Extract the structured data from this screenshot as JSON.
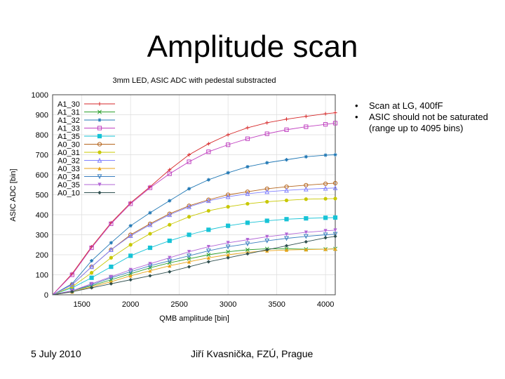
{
  "slide": {
    "title": "Amplitude scan",
    "bullets": [
      "Scan at LG, 400fF",
      "ASIC should not be saturated (range up to 4095 bins)"
    ],
    "footer_date": "5 July 2010",
    "footer_author": "Jiří Kvasnička, FZÚ, Prague"
  },
  "chart_data": {
    "type": "line",
    "title": "3mm LED, ASIC ADC with pedestal substracted",
    "xlabel": "QMB amplitude [bin]",
    "ylabel": "ASIC ADC [bin]",
    "xlim": [
      1200,
      4100
    ],
    "ylim": [
      0,
      1000
    ],
    "xticks": [
      1500,
      2000,
      2500,
      3000,
      3500,
      4000
    ],
    "yticks": [
      0,
      100,
      200,
      300,
      400,
      500,
      600,
      700,
      800,
      900,
      1000
    ],
    "grid": true,
    "legend_position": "top-left",
    "x": [
      1200,
      1400,
      1600,
      1800,
      2000,
      2200,
      2400,
      2600,
      2800,
      3000,
      3200,
      3400,
      3600,
      3800,
      4000,
      4100
    ],
    "series": [
      {
        "name": "A1_30",
        "color": "#d62728",
        "marker": "plus",
        "values": [
          0,
          105,
          240,
          360,
          460,
          540,
          625,
          700,
          755,
          800,
          835,
          860,
          878,
          892,
          905,
          910
        ]
      },
      {
        "name": "A1_31",
        "color": "#2ca02c",
        "marker": "x",
        "values": [
          0,
          20,
          45,
          75,
          105,
          135,
          160,
          180,
          200,
          215,
          225,
          230,
          230,
          228,
          228,
          230
        ]
      },
      {
        "name": "A1_32",
        "color": "#1f77b4",
        "marker": "star",
        "values": [
          0,
          55,
          170,
          260,
          345,
          410,
          470,
          530,
          575,
          610,
          640,
          660,
          675,
          690,
          698,
          700
        ]
      },
      {
        "name": "A1_33",
        "color": "#c040c0",
        "marker": "square",
        "values": [
          0,
          100,
          235,
          355,
          455,
          535,
          605,
          665,
          715,
          750,
          780,
          805,
          825,
          840,
          852,
          858
        ]
      },
      {
        "name": "A1_35",
        "color": "#17c3d6",
        "marker": "filled-square",
        "values": [
          0,
          35,
          85,
          140,
          195,
          235,
          270,
          300,
          325,
          345,
          360,
          370,
          378,
          382,
          385,
          386
        ]
      },
      {
        "name": "A0_30",
        "color": "#b5651d",
        "marker": "circle",
        "values": [
          0,
          50,
          140,
          225,
          300,
          355,
          405,
          445,
          475,
          500,
          515,
          530,
          540,
          548,
          555,
          558
        ]
      },
      {
        "name": "A0_31",
        "color": "#c8c800",
        "marker": "filled-circle",
        "values": [
          0,
          40,
          110,
          185,
          250,
          305,
          350,
          390,
          420,
          440,
          455,
          465,
          472,
          478,
          480,
          481
        ]
      },
      {
        "name": "A0_32",
        "color": "#7f7fff",
        "marker": "triangle",
        "values": [
          0,
          50,
          140,
          225,
          295,
          350,
          400,
          440,
          470,
          490,
          505,
          515,
          522,
          528,
          532,
          534
        ]
      },
      {
        "name": "A0_33",
        "color": "#e8a317",
        "marker": "filled-triangle",
        "values": [
          0,
          15,
          40,
          65,
          95,
          120,
          145,
          165,
          185,
          200,
          212,
          220,
          224,
          226,
          228,
          229
        ]
      },
      {
        "name": "A0_34",
        "color": "#3a7fbf",
        "marker": "inverted-triangle",
        "values": [
          0,
          20,
          50,
          85,
          115,
          145,
          170,
          195,
          220,
          240,
          255,
          270,
          282,
          292,
          300,
          303
        ]
      },
      {
        "name": "A0_35",
        "color": "#b266d6",
        "marker": "filled-inverted-triangle",
        "values": [
          0,
          20,
          55,
          90,
          125,
          155,
          185,
          215,
          240,
          260,
          275,
          290,
          302,
          312,
          320,
          323
        ]
      },
      {
        "name": "A0_10",
        "color": "#2f4f4f",
        "marker": "diamond",
        "values": [
          0,
          15,
          35,
          55,
          75,
          95,
          115,
          140,
          165,
          185,
          205,
          225,
          245,
          265,
          285,
          292
        ]
      }
    ]
  }
}
